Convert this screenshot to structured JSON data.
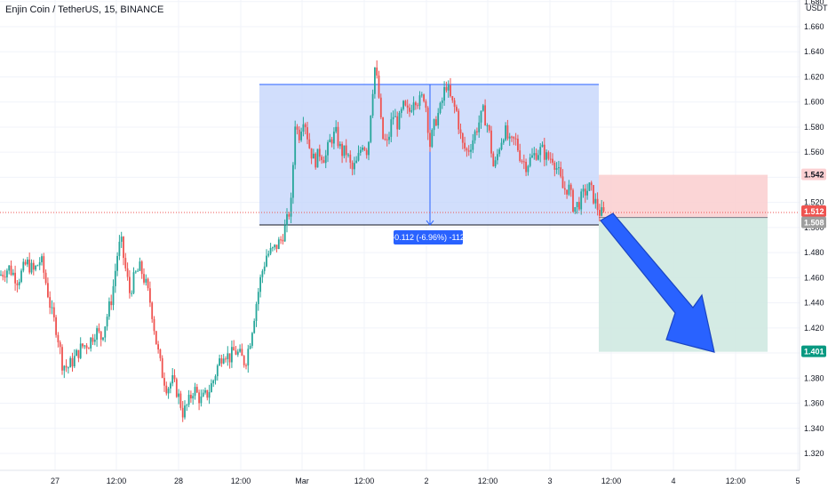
{
  "header": {
    "title": "Enjin Coin / TetherUS, 15, BINANCE",
    "currency_badge": "USDT"
  },
  "colors": {
    "up": "#26a69a",
    "down": "#ef5350",
    "grid": "#f0f3fa",
    "range_box": "#c5d6fb",
    "range_border": "#2962ff",
    "stop_zone": "#fbd0d2",
    "target_zone": "#cfe9e1",
    "arrow": "#2962ff",
    "tag_current": "#ef5350",
    "tag_entry": "#9e9e9e",
    "tag_target": "#089981"
  },
  "chart_data": {
    "type": "candlestick",
    "symbol": "Enjin Coin / TetherUS",
    "interval": "15",
    "exchange": "BINANCE",
    "y_axis": {
      "ticks": [
        "1.680",
        "1.660",
        "1.640",
        "1.620",
        "1.600",
        "1.580",
        "1.560",
        "1.540",
        "1.520",
        "1.500",
        "1.480",
        "1.460",
        "1.440",
        "1.420",
        "1.400",
        "1.380",
        "1.360",
        "1.340",
        "1.320"
      ],
      "range": [
        1.311,
        1.679
      ]
    },
    "x_axis": {
      "ticks": [
        "27",
        "12:00",
        "28",
        "12:00",
        "Mar",
        "12:00",
        "2",
        "12:00",
        "3",
        "12:00",
        "4",
        "12:00",
        "5"
      ]
    },
    "price_tags": [
      {
        "label": "1.542",
        "value": 1.542,
        "kind": "stop"
      },
      {
        "label": "1.512",
        "value": 1.512,
        "kind": "current"
      },
      {
        "label": "1.508",
        "value": 1.508,
        "kind": "entry"
      },
      {
        "label": "1.401",
        "value": 1.401,
        "kind": "target"
      }
    ],
    "range_box": {
      "high": 1.614,
      "low": 1.502
    },
    "measure_label": "-0.112 (-6.96%) -112",
    "position": {
      "entry": 1.508,
      "stop": 1.542,
      "target": 1.401
    },
    "price_path": [
      [
        0,
        1.462
      ],
      [
        10,
        1.468
      ],
      [
        20,
        1.458
      ],
      [
        30,
        1.472
      ],
      [
        38,
        1.465
      ],
      [
        46,
        1.475
      ],
      [
        52,
        1.455
      ],
      [
        58,
        1.432
      ],
      [
        64,
        1.418
      ],
      [
        70,
        1.392
      ],
      [
        76,
        1.388
      ],
      [
        84,
        1.396
      ],
      [
        92,
        1.405
      ],
      [
        100,
        1.408
      ],
      [
        108,
        1.418
      ],
      [
        114,
        1.412
      ],
      [
        120,
        1.428
      ],
      [
        126,
        1.445
      ],
      [
        132,
        1.478
      ],
      [
        136,
        1.49
      ],
      [
        140,
        1.472
      ],
      [
        146,
        1.448
      ],
      [
        152,
        1.462
      ],
      [
        158,
        1.468
      ],
      [
        164,
        1.455
      ],
      [
        170,
        1.438
      ],
      [
        176,
        1.408
      ],
      [
        182,
        1.385
      ],
      [
        188,
        1.372
      ],
      [
        194,
        1.378
      ],
      [
        200,
        1.368
      ],
      [
        206,
        1.352
      ],
      [
        212,
        1.36
      ],
      [
        218,
        1.372
      ],
      [
        226,
        1.362
      ],
      [
        234,
        1.368
      ],
      [
        240,
        1.378
      ],
      [
        246,
        1.392
      ],
      [
        252,
        1.402
      ],
      [
        258,
        1.396
      ],
      [
        264,
        1.402
      ],
      [
        270,
        1.398
      ],
      [
        276,
        1.392
      ],
      [
        282,
        1.412
      ],
      [
        288,
        1.438
      ],
      [
        294,
        1.462
      ],
      [
        300,
        1.478
      ],
      [
        308,
        1.482
      ],
      [
        316,
        1.49
      ],
      [
        322,
        1.502
      ],
      [
        328,
        1.52
      ],
      [
        332,
        1.585
      ],
      [
        336,
        1.572
      ],
      [
        342,
        1.59
      ],
      [
        348,
        1.565
      ],
      [
        354,
        1.552
      ],
      [
        360,
        1.56
      ],
      [
        366,
        1.555
      ],
      [
        372,
        1.57
      ],
      [
        378,
        1.575
      ],
      [
        384,
        1.56
      ],
      [
        390,
        1.56
      ],
      [
        396,
        1.545
      ],
      [
        402,
        1.552
      ],
      [
        408,
        1.568
      ],
      [
        414,
        1.56
      ],
      [
        418,
        1.6
      ],
      [
        422,
        1.628
      ],
      [
        426,
        1.608
      ],
      [
        430,
        1.572
      ],
      [
        436,
        1.566
      ],
      [
        442,
        1.59
      ],
      [
        448,
        1.582
      ],
      [
        454,
        1.596
      ],
      [
        460,
        1.59
      ],
      [
        466,
        1.605
      ],
      [
        472,
        1.6
      ],
      [
        478,
        1.606
      ],
      [
        484,
        1.566
      ],
      [
        490,
        1.585
      ],
      [
        496,
        1.595
      ],
      [
        502,
        1.615
      ],
      [
        508,
        1.6
      ],
      [
        514,
        1.592
      ],
      [
        520,
        1.566
      ],
      [
        526,
        1.56
      ],
      [
        532,
        1.57
      ],
      [
        538,
        1.582
      ],
      [
        544,
        1.592
      ],
      [
        550,
        1.578
      ],
      [
        556,
        1.545
      ],
      [
        562,
        1.565
      ],
      [
        568,
        1.578
      ],
      [
        574,
        1.566
      ],
      [
        580,
        1.57
      ],
      [
        586,
        1.556
      ],
      [
        592,
        1.55
      ],
      [
        598,
        1.555
      ],
      [
        604,
        1.56
      ],
      [
        610,
        1.562
      ],
      [
        616,
        1.555
      ],
      [
        622,
        1.556
      ],
      [
        628,
        1.545
      ],
      [
        634,
        1.53
      ],
      [
        640,
        1.532
      ],
      [
        646,
        1.515
      ],
      [
        652,
        1.52
      ],
      [
        658,
        1.528
      ],
      [
        664,
        1.532
      ],
      [
        670,
        1.52
      ],
      [
        675,
        1.512
      ],
      [
        680,
        1.51
      ]
    ]
  }
}
